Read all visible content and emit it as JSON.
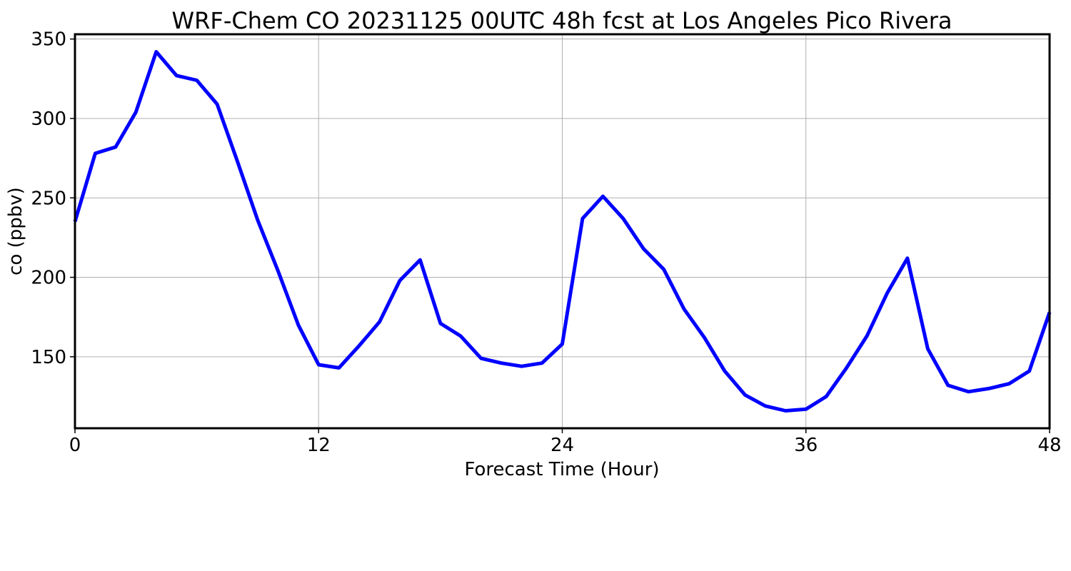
{
  "chart_data": {
    "type": "line",
    "title": "WRF-Chem CO  20231125 00UTC 48h fcst at Los Angeles Pico Rivera",
    "xlabel": "Forecast Time (Hour)",
    "ylabel": "co  (ppbv)",
    "xlim": [
      0,
      48
    ],
    "ylim": [
      105,
      353
    ],
    "xticks": [
      0,
      12,
      24,
      36,
      48
    ],
    "yticks": [
      150,
      200,
      250,
      300,
      350
    ],
    "grid": true,
    "series": [
      {
        "color": "#0000ff",
        "x": [
          0,
          1,
          2,
          3,
          4,
          5,
          6,
          7,
          8,
          9,
          10,
          11,
          12,
          13,
          14,
          15,
          16,
          17,
          18,
          19,
          20,
          21,
          22,
          23,
          24,
          25,
          26,
          27,
          28,
          29,
          30,
          31,
          32,
          33,
          34,
          35,
          36,
          37,
          38,
          39,
          40,
          41,
          42,
          43,
          44,
          45,
          46,
          47,
          48
        ],
        "values": [
          235,
          278,
          282,
          304,
          342,
          327,
          324,
          309,
          273,
          236,
          204,
          170,
          145,
          143,
          157,
          172,
          198,
          211,
          171,
          163,
          149,
          146,
          144,
          146,
          158,
          237,
          251,
          237,
          218,
          205,
          180,
          162,
          141,
          126,
          119,
          116,
          117,
          125,
          143,
          163,
          190,
          212,
          155,
          132,
          128,
          130,
          133,
          141,
          178
        ]
      }
    ]
  }
}
